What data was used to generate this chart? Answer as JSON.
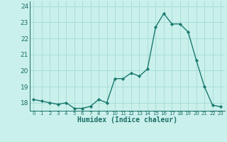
{
  "xlabel": "Humidex (Indice chaleur)",
  "x": [
    0,
    1,
    2,
    3,
    4,
    5,
    6,
    7,
    8,
    9,
    10,
    11,
    12,
    13,
    14,
    15,
    16,
    17,
    18,
    19,
    20,
    21,
    22,
    23
  ],
  "y": [
    18.2,
    18.1,
    18.0,
    17.9,
    18.0,
    17.65,
    17.65,
    17.78,
    18.2,
    18.0,
    19.5,
    19.5,
    19.85,
    19.65,
    20.1,
    22.7,
    23.55,
    22.9,
    22.9,
    22.4,
    20.65,
    19.0,
    17.85,
    17.75
  ],
  "line_color": "#1a7a6e",
  "marker_color": "#1a7a6e",
  "bg_color": "#caf0eb",
  "grid_color": "#aaddd8",
  "text_color": "#1a6e66",
  "ylim_min": 17.5,
  "ylim_max": 24.3,
  "yticks": [
    18,
    19,
    20,
    21,
    22,
    23,
    24
  ],
  "xtick_labels": [
    "0",
    "1",
    "2",
    "3",
    "4",
    "5",
    "6",
    "7",
    "8",
    "9",
    "10",
    "11",
    "12",
    "13",
    "14",
    "15",
    "16",
    "17",
    "18",
    "19",
    "20",
    "21",
    "22",
    "23"
  ]
}
